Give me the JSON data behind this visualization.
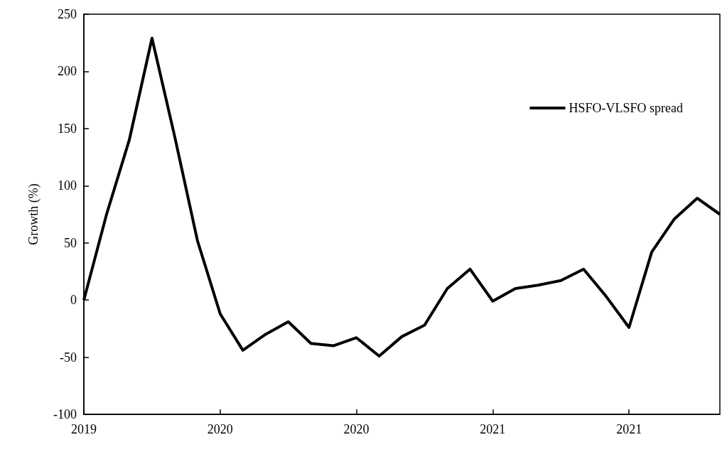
{
  "chart_data": {
    "type": "line",
    "ylabel": "Growth (%)",
    "categories": [
      "2019",
      null,
      null,
      null,
      null,
      null,
      "2020",
      null,
      null,
      null,
      null,
      null,
      "2020",
      null,
      null,
      null,
      null,
      null,
      "2021",
      null,
      null,
      null,
      null,
      null,
      "2021",
      null,
      null,
      null,
      null
    ],
    "series": [
      {
        "name": "HSFO-VLSFO spread",
        "color": "#000000",
        "values": [
          0,
          75,
          140,
          229,
          143,
          52,
          -12,
          -44,
          -30,
          -19,
          -38,
          -40,
          -33,
          -49,
          -32,
          -22,
          10,
          27,
          -1,
          10,
          13,
          17,
          27,
          3,
          -24,
          42,
          71,
          89,
          75
        ]
      }
    ],
    "ylim": [
      -100,
      250
    ],
    "yticks": [
      -100,
      -50,
      0,
      50,
      100,
      150,
      200,
      250
    ],
    "grid": false,
    "legend": "top right",
    "marker": "none",
    "line_style": "solid"
  }
}
